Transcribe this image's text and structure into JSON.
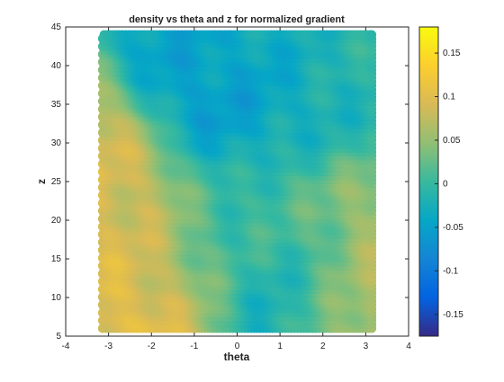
{
  "chart_data": {
    "type": "scatter",
    "title": "density vs theta and z for normalized gradient",
    "xlabel": "theta",
    "ylabel": "z",
    "xlim": [
      -4,
      4
    ],
    "ylim": [
      5,
      45
    ],
    "xticks": [
      -4,
      -3,
      -2,
      -1,
      0,
      1,
      2,
      3,
      4
    ],
    "yticks": [
      5,
      10,
      15,
      20,
      25,
      30,
      35,
      40,
      45
    ],
    "grid": false,
    "colormap": "parula",
    "colorbar": {
      "position": "right",
      "clim": [
        -0.175,
        0.18
      ],
      "ticks": [
        0.15,
        0.1,
        0.05,
        0,
        -0.05,
        -0.1,
        -0.15
      ],
      "tick_labels": [
        "0.15",
        "0.1",
        "0.05",
        "0",
        "-0.05",
        "-0.1",
        "-0.15"
      ]
    },
    "colormap_stops": [
      "#352a87",
      "#0363e1",
      "#1485d4",
      "#06a7c6",
      "#38b99e",
      "#92bf73",
      "#d9ba56",
      "#fcce2e",
      "#f9fb0e"
    ],
    "data_extent": {
      "theta": [
        -3.14,
        3.14
      ],
      "z": [
        6,
        44
      ]
    },
    "data_pattern": [
      {
        "theta": -3.0,
        "z": 20,
        "value": 0.08
      },
      {
        "theta": -2.4,
        "z": 25,
        "value": 0.1
      },
      {
        "theta": -2.2,
        "z": 12,
        "value": 0.11
      },
      {
        "theta": -1.2,
        "z": 18,
        "value": 0.06
      },
      {
        "theta": -0.8,
        "z": 37,
        "value": -0.05
      },
      {
        "theta": -0.2,
        "z": 35,
        "value": -0.08
      },
      {
        "theta": -0.3,
        "z": 20,
        "value": -0.04
      },
      {
        "theta": 0.6,
        "z": 22,
        "value": 0.04
      },
      {
        "theta": 1.6,
        "z": 14,
        "value": -0.05
      },
      {
        "theta": 1.4,
        "z": 34,
        "value": -0.03
      },
      {
        "theta": 2.5,
        "z": 18,
        "value": 0.07
      },
      {
        "theta": 3.0,
        "z": 10,
        "value": 0.08
      },
      {
        "theta": 0.0,
        "z": 42,
        "value": -0.02
      },
      {
        "theta": 3.0,
        "z": 40,
        "value": -0.01
      }
    ]
  }
}
